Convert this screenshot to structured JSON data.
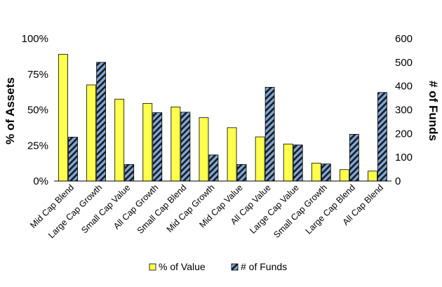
{
  "chart_data": {
    "type": "bar",
    "categories": [
      "Mid Cap Blend",
      "Large Cap Growth",
      "Small Cap Value",
      "All Cap Growth",
      "Small Cap Blend",
      "Mid Cap Growth",
      "Mid Cap Value",
      "All Cap Value",
      "Large Cap Value",
      "Small Cap Growth",
      "Large Cap Blend",
      "All Cap Blend"
    ],
    "series": [
      {
        "name": "% of Value",
        "axis": "left",
        "color": "#ffff4d",
        "values": [
          89,
          67.5,
          57.5,
          54.5,
          52,
          44.5,
          37.5,
          31,
          26,
          12.5,
          8,
          7
        ]
      },
      {
        "name": "# of Funds",
        "axis": "right",
        "color": "#7ea6d8",
        "pattern": "diagonal-hatch-black",
        "values": [
          185,
          500,
          70,
          288,
          290,
          110,
          70,
          395,
          152,
          72,
          197,
          373
        ]
      }
    ],
    "title": "",
    "ylabel": "% of Assets",
    "y2label": "# of Funds",
    "ylim": [
      0,
      100
    ],
    "y2lim": [
      0,
      600
    ],
    "yticks": [
      "0%",
      "25%",
      "50%",
      "75%",
      "100%"
    ],
    "y2ticks": [
      "0",
      "100",
      "200",
      "300",
      "400",
      "500",
      "600"
    ],
    "grid": false,
    "legend": "bottom"
  }
}
